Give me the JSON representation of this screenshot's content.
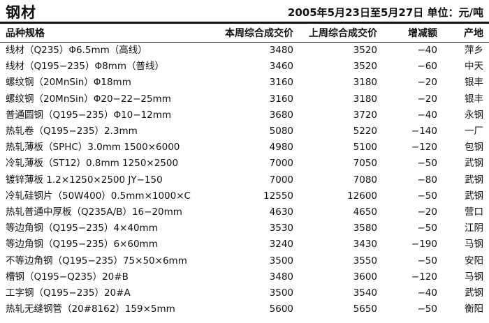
{
  "header": {
    "title": "钢材",
    "date_range": "2005年5月23日至5月27日",
    "unit": "单位：元/吨"
  },
  "table": {
    "columns": [
      "品种规格",
      "本周综合成交价",
      "上周综合成交价",
      "增减额",
      "产地"
    ],
    "rows": [
      {
        "name": "线材（Q235）Φ6.5mm（高线）",
        "this_week": "3480",
        "last_week": "3520",
        "change": "−40",
        "origin": "萍乡"
      },
      {
        "name": "线材（Q195−235）Φ8mm（普线）",
        "this_week": "3460",
        "last_week": "3520",
        "change": "−60",
        "origin": "中天"
      },
      {
        "name": "螺纹钢（20MnSin）Φ18mm",
        "this_week": "3160",
        "last_week": "3180",
        "change": "−20",
        "origin": "银丰"
      },
      {
        "name": "螺纹钢（20MnSin）Φ20−22−25mm",
        "this_week": "3160",
        "last_week": "3180",
        "change": "−20",
        "origin": "银丰"
      },
      {
        "name": "普通圆钢（Q195−235）Φ10−12mm",
        "this_week": "3680",
        "last_week": "3720",
        "change": "−40",
        "origin": "永钢"
      },
      {
        "name": "热轧卷（Q195−235）2.3mm",
        "this_week": "5080",
        "last_week": "5220",
        "change": "−140",
        "origin": "一厂"
      },
      {
        "name": "热轧薄板（SPHC）3.0mm 1500×6000",
        "this_week": "4980",
        "last_week": "5100",
        "change": "−120",
        "origin": "包钢"
      },
      {
        "name": "冷轧薄板（ST12）0.8mm 1250×2500",
        "this_week": "7000",
        "last_week": "7050",
        "change": "−50",
        "origin": "武钢"
      },
      {
        "name": "镀锌薄板 1.2×1250×2500 JY−150",
        "this_week": "7000",
        "last_week": "7080",
        "change": "−80",
        "origin": "武钢"
      },
      {
        "name": "冷轧硅钢片（50W400）0.5mm×1000×C",
        "this_week": "12550",
        "last_week": "12600",
        "change": "−50",
        "origin": "武钢"
      },
      {
        "name": "热轧普通中厚板（Q235A/B）16−20mm",
        "this_week": "4630",
        "last_week": "4650",
        "change": "−20",
        "origin": "营口"
      },
      {
        "name": "等边角钢（Q195−235）4×40mm",
        "this_week": "3530",
        "last_week": "3580",
        "change": "−50",
        "origin": "江阴"
      },
      {
        "name": "等边角钢（Q195−235）6×60mm",
        "this_week": "3240",
        "last_week": "3430",
        "change": "−190",
        "origin": "马钢"
      },
      {
        "name": "不等边角钢（Q195−235）75×50×6mm",
        "this_week": "3500",
        "last_week": "3550",
        "change": "−50",
        "origin": "安阳"
      },
      {
        "name": "槽钢（Q195−Q235）20#B",
        "this_week": "3480",
        "last_week": "3600",
        "change": "−120",
        "origin": "马钢"
      },
      {
        "name": "工字钢（Q195−235）20#A",
        "this_week": "3500",
        "last_week": "3540",
        "change": "−40",
        "origin": "武钢"
      },
      {
        "name": "热轧无缝钢管（20#8162）159×5mm",
        "this_week": "5600",
        "last_week": "5650",
        "change": "−50",
        "origin": "衡阳"
      }
    ]
  }
}
